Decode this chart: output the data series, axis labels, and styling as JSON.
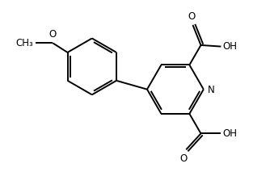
{
  "background": "#ffffff",
  "line_color": "#000000",
  "lw": 1.4,
  "fig_width": 3.34,
  "fig_height": 2.18,
  "dpi": 100,
  "xlim": [
    0,
    10
  ],
  "ylim": [
    0,
    6.5
  ]
}
